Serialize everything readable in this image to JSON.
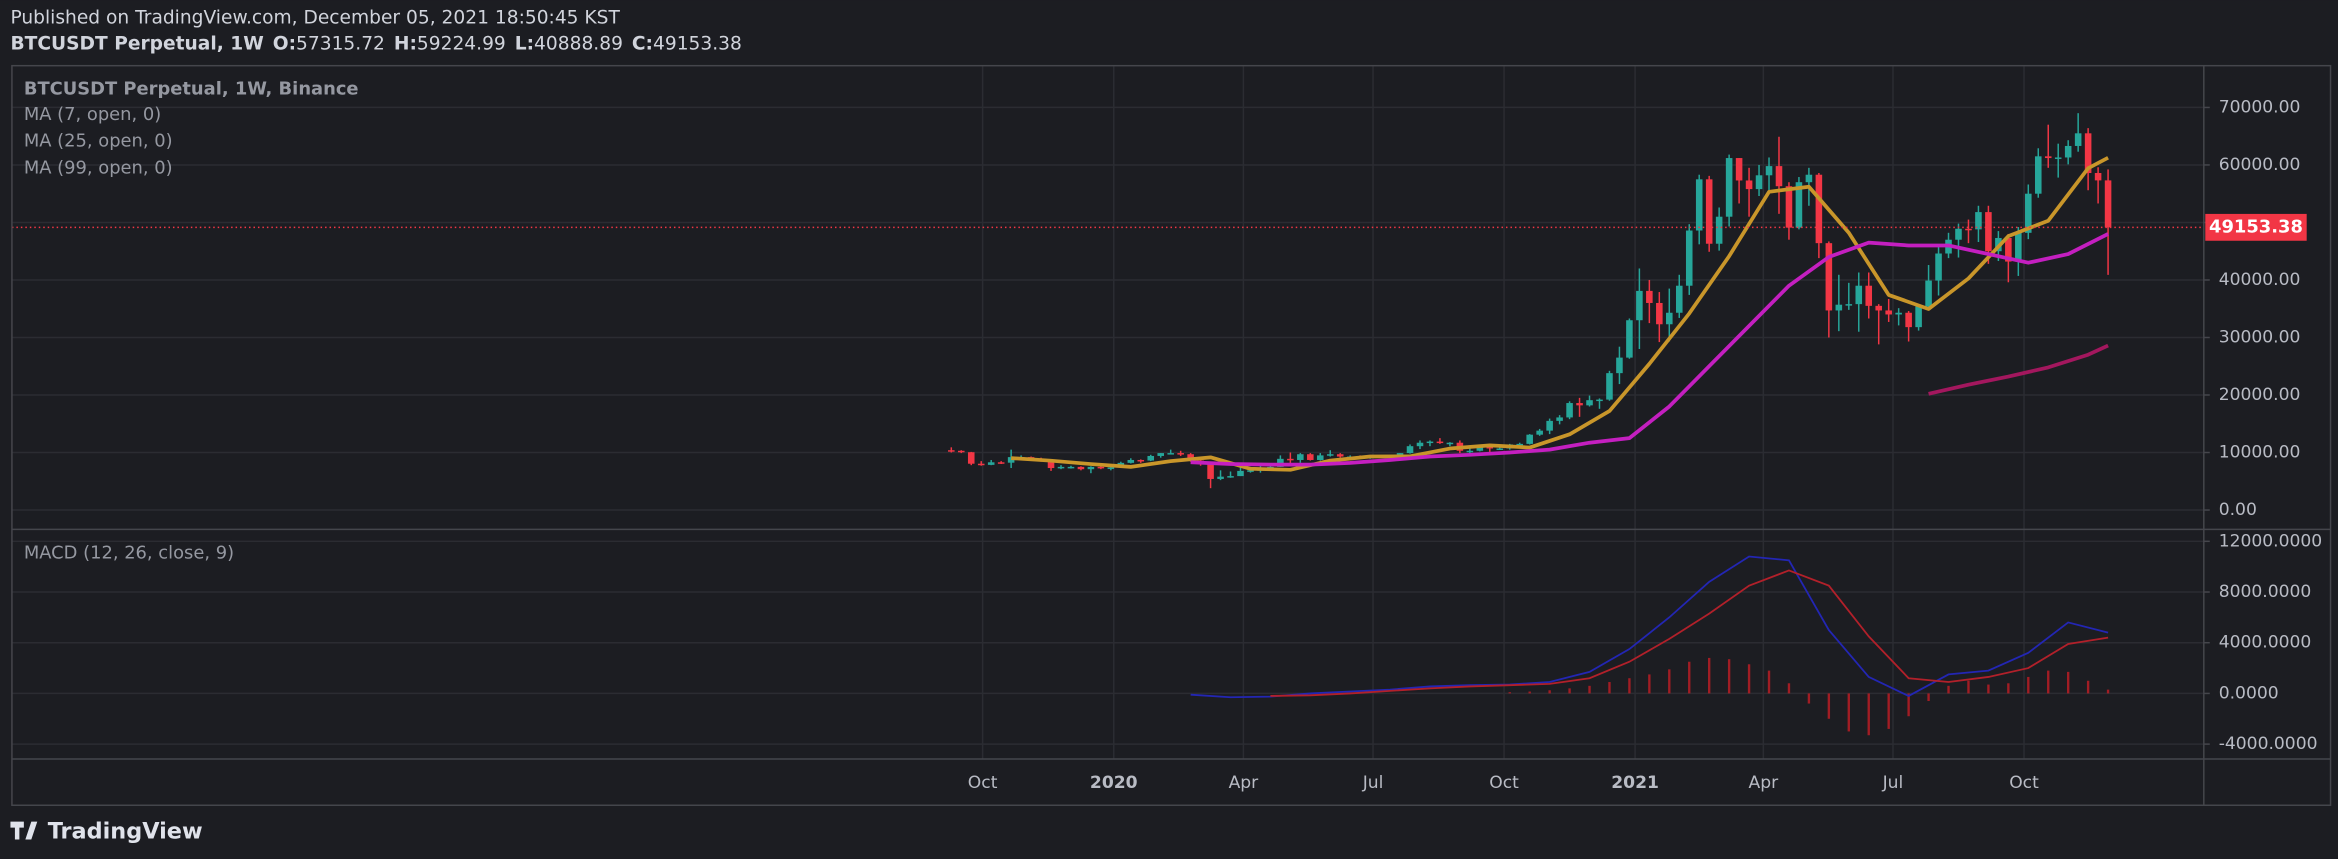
{
  "header": {
    "published": "Published on TradingView.com, December 05, 2021 18:50:45 KST",
    "symbol": "BTCUSDT Perpetual, 1W",
    "o_label": "O:",
    "h_label": "H:",
    "l_label": "L:",
    "c_label": "C:"
  },
  "footer": {
    "brand": "TradingView"
  },
  "chart_data": [
    {
      "type": "candlestick",
      "title": "BTCUSDT Perpetual, 1W, Binance",
      "up_color": "#26a69a",
      "down_color": "#f23645",
      "grid": true,
      "open": [
        10400,
        10300,
        10050,
        8050,
        7850,
        8300,
        8230,
        9200,
        9200,
        8800,
        8500,
        7300,
        7500,
        7500,
        7100,
        7500,
        7300,
        7400,
        8200,
        8700,
        8600,
        9400,
        9900,
        9900,
        9700,
        8600,
        8000,
        5400,
        5800,
        5900,
        6800,
        6900,
        7100,
        7500,
        8900,
        8700,
        9700,
        8700,
        9500,
        9700,
        9300,
        9300,
        9000,
        9300,
        9300,
        9200,
        9900,
        11100,
        11700,
        11900,
        11700,
        11700,
        10300,
        10300,
        11100,
        10700,
        10700,
        11400,
        11500,
        13100,
        13800,
        15500,
        16100,
        18600,
        18200,
        19100,
        19200,
        23800,
        26500,
        33000,
        38100,
        36000,
        32300,
        34300,
        39000,
        48600,
        57500,
        46300,
        51000,
        61200,
        57300,
        55800,
        58200,
        59800,
        56300,
        49100,
        57000,
        58300,
        46400,
        34700,
        35700,
        35800,
        39000,
        35500,
        34700,
        34000,
        34300,
        31800,
        35400,
        39900,
        44600,
        47000,
        48900,
        48800,
        51800,
        45000,
        47300,
        43200,
        48200,
        55000,
        61500,
        61200,
        61300,
        63300,
        65500,
        58600,
        57315.72
      ],
      "high": [
        10900,
        10400,
        10100,
        8500,
        8700,
        8500,
        10500,
        9500,
        9300,
        9100,
        8600,
        7800,
        7700,
        7600,
        7600,
        7700,
        7600,
        8400,
        9000,
        8800,
        9600,
        9900,
        10500,
        10300,
        9900,
        9200,
        8200,
        6900,
        6700,
        7500,
        7500,
        7800,
        7800,
        9500,
        10000,
        9900,
        9900,
        9900,
        10400,
        9900,
        9500,
        9500,
        9400,
        9500,
        9400,
        9900,
        11400,
        12100,
        12100,
        12500,
        11800,
        12100,
        10700,
        11100,
        11200,
        10900,
        11500,
        11700,
        13200,
        14100,
        15900,
        16500,
        18900,
        19500,
        19900,
        19400,
        24200,
        28400,
        33300,
        42000,
        40000,
        37900,
        38500,
        40900,
        49700,
        58300,
        58100,
        52600,
        61800,
        61200,
        59500,
        60000,
        61300,
        64900,
        57000,
        57900,
        59500,
        58600,
        46700,
        40900,
        39500,
        41300,
        41300,
        35800,
        36700,
        35100,
        34600,
        35700,
        42600,
        46000,
        48200,
        49800,
        50500,
        52900,
        52900,
        48500,
        48000,
        49200,
        56600,
        62900,
        67000,
        63700,
        64300,
        69000,
        66400,
        59600,
        59224.99
      ],
      "low": [
        10000,
        9900,
        7800,
        7700,
        7800,
        8000,
        7300,
        9000,
        8700,
        8400,
        6800,
        7100,
        7200,
        6900,
        6400,
        7100,
        6900,
        7300,
        8100,
        8200,
        8500,
        9100,
        9800,
        9400,
        8400,
        7700,
        3800,
        5200,
        5600,
        5900,
        6500,
        6500,
        6800,
        7500,
        8100,
        8200,
        8600,
        8600,
        9300,
        9100,
        8900,
        8900,
        8900,
        9100,
        9000,
        9100,
        9800,
        10600,
        11100,
        11500,
        11100,
        9900,
        9900,
        10200,
        10100,
        10500,
        10500,
        11100,
        11400,
        12900,
        13200,
        14900,
        15800,
        16200,
        18000,
        17600,
        19000,
        21900,
        26300,
        28000,
        32500,
        29200,
        29300,
        33400,
        37400,
        46200,
        44900,
        45100,
        49300,
        53300,
        51000,
        54600,
        55400,
        51500,
        47000,
        48800,
        52900,
        43800,
        30000,
        31100,
        34800,
        31000,
        33300,
        28800,
        32700,
        32100,
        29300,
        31200,
        35300,
        37300,
        43800,
        43900,
        46400,
        46600,
        42800,
        43300,
        39600,
        40700,
        47100,
        54300,
        59500,
        57800,
        60100,
        62300,
        55600,
        53300,
        40888.89
      ],
      "close": [
        10300,
        10050,
        8050,
        7850,
        8300,
        8230,
        9200,
        9200,
        8800,
        8500,
        7300,
        7500,
        7500,
        7100,
        7500,
        7300,
        7400,
        8200,
        8700,
        8600,
        9400,
        9900,
        9900,
        9700,
        8600,
        8000,
        5400,
        5800,
        5900,
        6800,
        6900,
        7100,
        7500,
        8900,
        8700,
        9700,
        8700,
        9500,
        9700,
        9300,
        9300,
        9000,
        9300,
        9300,
        9200,
        9900,
        11100,
        11700,
        11900,
        11700,
        11700,
        10300,
        10300,
        11100,
        10700,
        10700,
        11400,
        11500,
        13100,
        13800,
        15500,
        16100,
        18600,
        18200,
        19100,
        19200,
        23800,
        26500,
        33000,
        38100,
        36000,
        32300,
        34300,
        39000,
        48600,
        57500,
        46300,
        51000,
        61200,
        57300,
        55800,
        58200,
        59800,
        56300,
        49100,
        57000,
        58300,
        46400,
        34700,
        35700,
        35800,
        39000,
        35500,
        34700,
        34000,
        34300,
        31800,
        35400,
        39900,
        44600,
        47000,
        48900,
        48800,
        51800,
        45000,
        47300,
        43200,
        48200,
        55000,
        61500,
        61200,
        61300,
        63300,
        65500,
        58600,
        57315.72,
        49153.38
      ],
      "series": [
        {
          "name": "MA (7, open, 0)",
          "color": "#c9962a",
          "x": [
            6,
            10,
            14,
            18,
            22,
            26,
            30,
            34,
            38,
            42,
            46,
            50,
            54,
            58,
            62,
            66,
            70,
            74,
            78,
            82,
            86,
            90,
            94,
            98,
            102,
            106,
            110,
            114,
            116
          ],
          "values": [
            9030,
            8580,
            7990,
            7500,
            8500,
            9160,
            7170,
            6990,
            8590,
            9310,
            9330,
            10690,
            11240,
            10860,
            13160,
            17210,
            25410,
            34170,
            44140,
            55330,
            56210,
            48210,
            37400,
            34960,
            40270,
            47630,
            50290,
            59430,
            61250
          ]
        },
        {
          "name": "MA (25, open, 0)",
          "color": "#c41fc0",
          "x": [
            24,
            28,
            32,
            36,
            40,
            44,
            48,
            52,
            56,
            60,
            64,
            68,
            72,
            76,
            80,
            84,
            88,
            92,
            96,
            100,
            104,
            108,
            112,
            116
          ],
          "values": [
            8300,
            8000,
            7900,
            7900,
            8200,
            8700,
            9300,
            9600,
            10000,
            10500,
            11700,
            12500,
            18000,
            25000,
            32000,
            39000,
            44000,
            46500,
            46000,
            46000,
            44500,
            43000,
            44500,
            48000
          ]
        },
        {
          "name": "MA (99, open, 0)",
          "color": "#a3175e",
          "x": [
            98,
            102,
            106,
            110,
            114,
            116
          ],
          "values": [
            20200,
            21800,
            23200,
            24800,
            27000,
            28600
          ]
        }
      ],
      "xlim": [
        -94.2,
        125.6
      ],
      "xticks": [
        {
          "value": 3.14,
          "label": "Oct"
        },
        {
          "value": 16.29,
          "label": "2020"
        },
        {
          "value": 29.29,
          "label": "Apr"
        },
        {
          "value": 42.29,
          "label": "Jul"
        },
        {
          "value": 55.43,
          "label": "Oct"
        },
        {
          "value": 68.57,
          "label": "2021"
        },
        {
          "value": 81.43,
          "label": "Apr"
        },
        {
          "value": 94.43,
          "label": "Jul"
        },
        {
          "value": 107.57,
          "label": "Oct"
        }
      ],
      "ylim": [
        -3370,
        77260
      ],
      "yticks": [
        {
          "value": 0,
          "label": "0.00"
        },
        {
          "value": 10000,
          "label": "10000.00"
        },
        {
          "value": 20000,
          "label": "20000.00"
        },
        {
          "value": 30000,
          "label": "30000.00"
        },
        {
          "value": 40000,
          "label": "40000.00"
        },
        {
          "value": 50000,
          "label": "50000.00"
        },
        {
          "value": 60000,
          "label": "60000.00"
        },
        {
          "value": 70000,
          "label": "70000.00"
        }
      ]
    },
    {
      "type": "macd",
      "title": "MACD (12, 26, close, 9)",
      "grid": true,
      "series": [
        {
          "color": "#2326b4",
          "x": [
            24,
            28,
            32,
            36,
            40,
            44,
            48,
            52,
            56,
            60,
            64,
            68,
            72,
            76,
            80,
            84,
            88,
            92,
            96,
            100,
            104,
            108,
            112,
            116
          ],
          "values": [
            -100,
            -300,
            -250,
            0,
            150,
            300,
            550,
            650,
            700,
            900,
            1700,
            3500,
            6000,
            8800,
            10800,
            10500,
            5000,
            1300,
            -200,
            1500,
            1800,
            3200,
            5600,
            4800
          ]
        },
        {
          "color": "#b2202a",
          "x": [
            32,
            36,
            40,
            44,
            48,
            52,
            56,
            60,
            64,
            68,
            72,
            76,
            80,
            84,
            88,
            92,
            96,
            100,
            104,
            108,
            112,
            116
          ],
          "values": [
            -200,
            -150,
            0,
            200,
            400,
            550,
            650,
            750,
            1200,
            2500,
            4300,
            6300,
            8500,
            9700,
            8500,
            4500,
            1200,
            900,
            1300,
            2000,
            3900,
            4400
          ]
        }
      ],
      "histogram": {
        "color": "#a11d24",
        "x": [
          56,
          58,
          60,
          62,
          64,
          66,
          68,
          70,
          72,
          74,
          76,
          78,
          80,
          82,
          84,
          86,
          88,
          90,
          92,
          94,
          96,
          98,
          100,
          102,
          104,
          106,
          108,
          110,
          112,
          114,
          116
        ],
        "values": [
          100,
          150,
          250,
          400,
          600,
          900,
          1200,
          1500,
          1900,
          2500,
          2800,
          2700,
          2300,
          1800,
          800,
          -800,
          -2000,
          -3000,
          -3300,
          -2800,
          -1800,
          -600,
          600,
          1000,
          700,
          800,
          1300,
          1800,
          1700,
          1000,
          300
        ]
      },
      "ylim": [
        -5176,
        12940
      ],
      "yticks": [
        {
          "value": -4000,
          "label": "-4000.0000"
        },
        {
          "value": 0,
          "label": "0.0000"
        },
        {
          "value": 4000,
          "label": "4000.0000"
        },
        {
          "value": 8000,
          "label": "8000.0000"
        },
        {
          "value": 12000,
          "label": "12000.0000"
        }
      ]
    }
  ]
}
